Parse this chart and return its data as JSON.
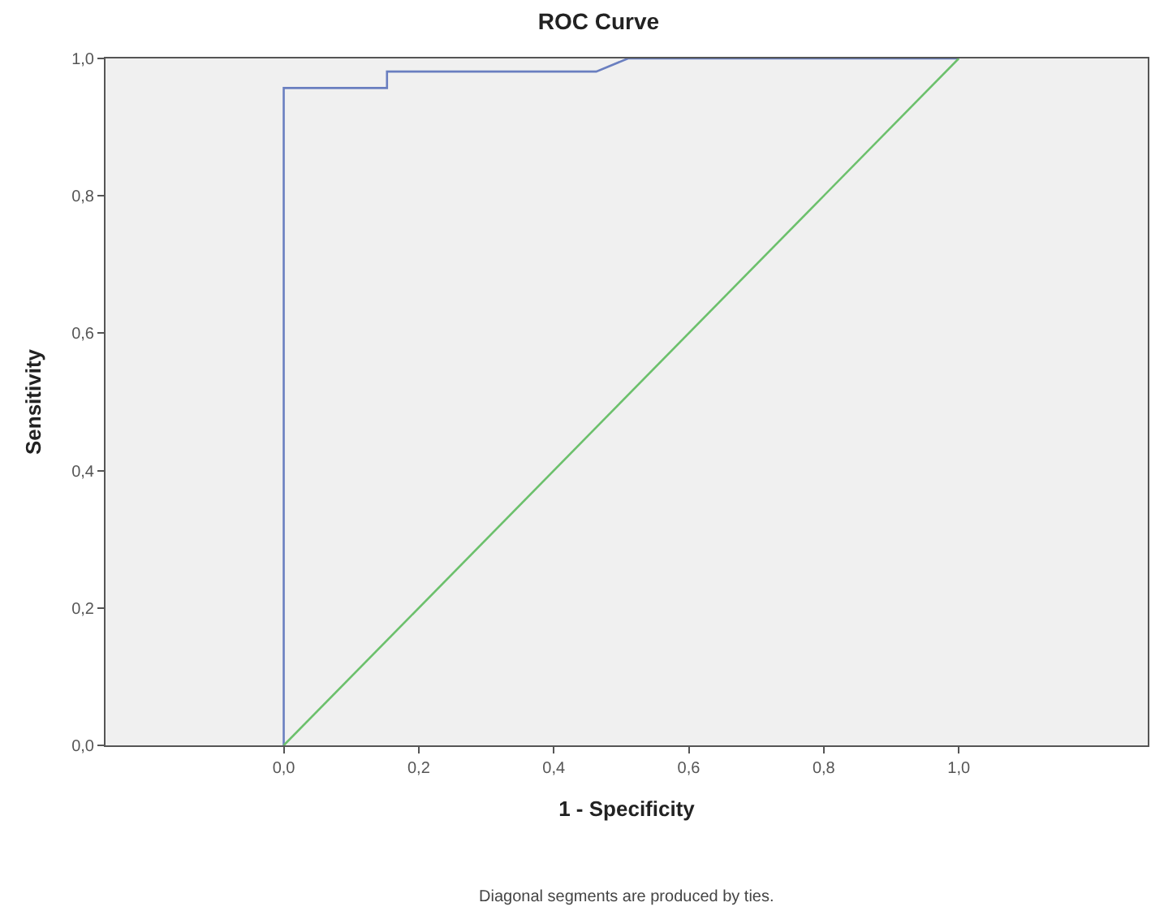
{
  "chart_data": {
    "type": "line",
    "title": "ROC Curve",
    "xlabel": "1 - Specificity",
    "ylabel": "Sensitivity",
    "annotations": [
      "Diagonal segments are produced by ties."
    ],
    "series": [
      {
        "color": "#6a7fc0",
        "x": [
          0,
          0,
          0.153,
          0.153,
          0.463,
          0.51,
          1.0
        ],
        "values": [
          0,
          0.957,
          0.957,
          0.981,
          0.981,
          1.0,
          1.0
        ]
      },
      {
        "color": "#6cc06c",
        "x": [
          0,
          1.0
        ],
        "values": [
          0,
          1.0
        ]
      }
    ],
    "xlim": [
      -0.264,
      1.28
    ],
    "ylim": [
      0,
      1.0
    ],
    "xticks": [
      {
        "value": 0,
        "label": "0,0"
      },
      {
        "value": 0.2,
        "label": "0,2"
      },
      {
        "value": 0.4,
        "label": "0,4"
      },
      {
        "value": 0.6,
        "label": "0,6"
      },
      {
        "value": 0.8,
        "label": "0,8"
      },
      {
        "value": 1.0,
        "label": "1,0"
      }
    ],
    "yticks": [
      {
        "value": 0,
        "label": "0,0"
      },
      {
        "value": 0.2,
        "label": "0,2"
      },
      {
        "value": 0.4,
        "label": "0,4"
      },
      {
        "value": 0.6,
        "label": "0,6"
      },
      {
        "value": 0.8,
        "label": "0,8"
      },
      {
        "value": 1.0,
        "label": "1,0"
      }
    ],
    "grid": false,
    "marker": "none",
    "line_style": "solid"
  }
}
